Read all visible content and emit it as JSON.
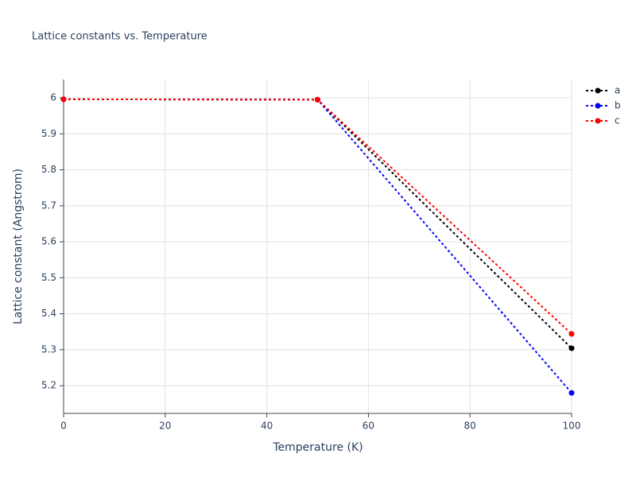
{
  "chart_data": {
    "type": "line",
    "title": "Lattice constants vs. Temperature",
    "x_label": "Temperature (K)",
    "y_label": "Lattice constant (Angstrom)",
    "x": [
      0,
      50,
      100
    ],
    "series": [
      {
        "name": "a",
        "color": "#000000",
        "values": [
          5.996,
          5.995,
          5.304
        ]
      },
      {
        "name": "b",
        "color": "#0000ff",
        "values": [
          5.996,
          5.995,
          5.18
        ]
      },
      {
        "name": "c",
        "color": "#ff0000",
        "values": [
          5.996,
          5.995,
          5.344
        ]
      }
    ],
    "xlim": [
      0,
      100
    ],
    "xticks": [
      0,
      20,
      40,
      60,
      80,
      100
    ],
    "ylim": [
      5.123,
      6.051
    ],
    "yticks": [
      5.2,
      5.3,
      5.4,
      5.5,
      5.6,
      5.7,
      5.8,
      5.9,
      6
    ],
    "grid": true,
    "legend": "top-right",
    "line_style": "dotted"
  }
}
